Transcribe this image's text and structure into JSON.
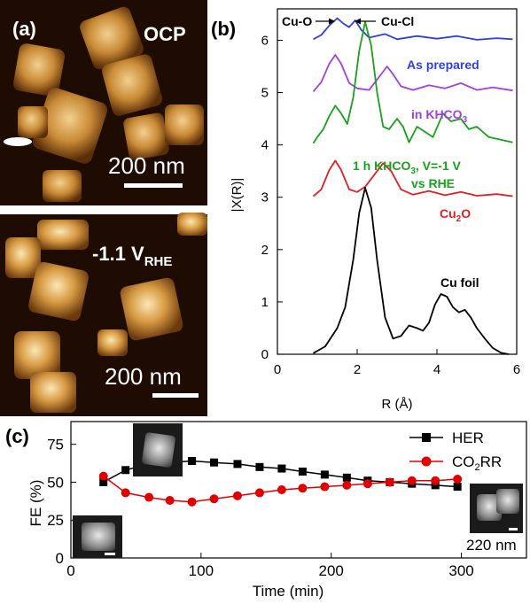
{
  "panel_a": {
    "label": "(a)",
    "top": {
      "condition": "OCP",
      "scale": "200 nm"
    },
    "bottom": {
      "condition_main": "-1.1 V",
      "condition_sub": "RHE",
      "scale": "200 nm"
    },
    "colors": {
      "background": "#1e0b02",
      "particle_dark": "#6a3a0c",
      "particle_mid": "#b8782a",
      "particle_light": "#e8c27a"
    }
  },
  "chart_data": [
    {
      "type": "line",
      "panel": "(b)",
      "xlabel": "R (Å)",
      "ylabel": "|X(R)|",
      "xlim": [
        0,
        6
      ],
      "ylim": [
        0,
        6.6
      ],
      "xticks": [
        0,
        2,
        4,
        6
      ],
      "yticks": [
        0,
        1,
        2,
        3,
        4,
        5,
        6
      ],
      "annotations": [
        {
          "text": "Cu-O",
          "arrow": "right",
          "color": "#000000"
        },
        {
          "text": "Cu-Cl",
          "arrow": "left",
          "color": "#000000"
        }
      ],
      "series": [
        {
          "name": "As prepared",
          "color": "#2f3fe0",
          "offset": 6,
          "points": [
            [
              0.9,
              0.02
            ],
            [
              1.1,
              0.1
            ],
            [
              1.3,
              0.28
            ],
            [
              1.5,
              0.42
            ],
            [
              1.65,
              0.32
            ],
            [
              1.8,
              0.25
            ],
            [
              1.95,
              0.38
            ],
            [
              2.1,
              0.2
            ],
            [
              2.3,
              0.05
            ],
            [
              2.7,
              0.12
            ],
            [
              3.0,
              0.02
            ],
            [
              3.5,
              0.08
            ],
            [
              4.0,
              0.03
            ],
            [
              4.5,
              0.08
            ],
            [
              5.0,
              0.01
            ],
            [
              5.5,
              0.04
            ],
            [
              5.9,
              0.02
            ]
          ]
        },
        {
          "name": "in KHCO3",
          "name_main": "in KHCO",
          "name_sub": "3",
          "color": "#a040e0",
          "offset": 5,
          "points": [
            [
              0.9,
              0.02
            ],
            [
              1.1,
              0.2
            ],
            [
              1.3,
              0.55
            ],
            [
              1.45,
              0.72
            ],
            [
              1.6,
              0.55
            ],
            [
              1.8,
              0.18
            ],
            [
              2.0,
              0.08
            ],
            [
              2.3,
              0.05
            ],
            [
              2.55,
              0.3
            ],
            [
              2.75,
              0.5
            ],
            [
              2.9,
              0.35
            ],
            [
              3.1,
              0.12
            ],
            [
              3.4,
              0.05
            ],
            [
              3.8,
              0.14
            ],
            [
              4.2,
              0.08
            ],
            [
              4.6,
              0.18
            ],
            [
              5.0,
              0.05
            ],
            [
              5.4,
              0.1
            ],
            [
              5.9,
              0.04
            ]
          ]
        },
        {
          "name": "1 h KHCO3, V=-1 V vs RHE",
          "label_line1": "1 h KHCO",
          "label_line1_sub": "3",
          "label_line1_tail": ", V=-1 V",
          "label_line2": "vs RHE",
          "color": "#1aa01a",
          "offset": 4,
          "points": [
            [
              0.9,
              0.03
            ],
            [
              1.0,
              0.15
            ],
            [
              1.15,
              0.3
            ],
            [
              1.3,
              0.55
            ],
            [
              1.45,
              0.75
            ],
            [
              1.6,
              0.6
            ],
            [
              1.75,
              0.4
            ],
            [
              1.9,
              0.9
            ],
            [
              2.05,
              1.8
            ],
            [
              2.2,
              2.35
            ],
            [
              2.35,
              1.9
            ],
            [
              2.5,
              1.0
            ],
            [
              2.65,
              0.35
            ],
            [
              2.8,
              0.3
            ],
            [
              3.0,
              0.5
            ],
            [
              3.15,
              0.35
            ],
            [
              3.3,
              0.05
            ],
            [
              3.5,
              0.35
            ],
            [
              3.7,
              0.25
            ],
            [
              3.9,
              0.15
            ],
            [
              4.15,
              0.6
            ],
            [
              4.35,
              0.45
            ],
            [
              4.6,
              0.5
            ],
            [
              4.8,
              0.3
            ],
            [
              5.0,
              0.35
            ],
            [
              5.3,
              0.15
            ],
            [
              5.6,
              0.1
            ],
            [
              5.9,
              0.05
            ]
          ]
        },
        {
          "name": "Cu2O",
          "name_main": "Cu",
          "name_sub": "2",
          "name_tail": "O",
          "color": "#e02020",
          "offset": 3,
          "points": [
            [
              0.9,
              0.02
            ],
            [
              1.1,
              0.15
            ],
            [
              1.3,
              0.52
            ],
            [
              1.45,
              0.7
            ],
            [
              1.6,
              0.52
            ],
            [
              1.8,
              0.15
            ],
            [
              2.0,
              0.1
            ],
            [
              2.2,
              0.2
            ],
            [
              2.45,
              0.45
            ],
            [
              2.65,
              0.65
            ],
            [
              2.85,
              0.5
            ],
            [
              3.1,
              0.15
            ],
            [
              3.4,
              0.05
            ],
            [
              3.8,
              0.12
            ],
            [
              4.2,
              0.04
            ],
            [
              4.6,
              0.1
            ],
            [
              5.0,
              0.03
            ],
            [
              5.5,
              0.06
            ],
            [
              5.9,
              0.02
            ]
          ]
        },
        {
          "name": "Cu foil",
          "color": "#000000",
          "offset": 0,
          "points": [
            [
              0.9,
              0.02
            ],
            [
              1.2,
              0.15
            ],
            [
              1.5,
              0.5
            ],
            [
              1.7,
              0.9
            ],
            [
              1.9,
              1.8
            ],
            [
              2.05,
              2.7
            ],
            [
              2.2,
              3.18
            ],
            [
              2.35,
              2.8
            ],
            [
              2.5,
              1.8
            ],
            [
              2.7,
              0.7
            ],
            [
              2.9,
              0.3
            ],
            [
              3.1,
              0.35
            ],
            [
              3.3,
              0.55
            ],
            [
              3.5,
              0.5
            ],
            [
              3.65,
              0.45
            ],
            [
              3.8,
              0.6
            ],
            [
              3.95,
              0.95
            ],
            [
              4.1,
              1.15
            ],
            [
              4.25,
              1.1
            ],
            [
              4.4,
              0.9
            ],
            [
              4.55,
              0.8
            ],
            [
              4.7,
              0.85
            ],
            [
              4.85,
              0.7
            ],
            [
              5.0,
              0.5
            ],
            [
              5.2,
              0.3
            ],
            [
              5.4,
              0.12
            ],
            [
              5.6,
              0.03
            ],
            [
              5.8,
              0.0
            ]
          ]
        }
      ]
    },
    {
      "type": "line",
      "panel": "(c)",
      "xlabel": "Time (min)",
      "ylabel": "FE (%)",
      "xlim": [
        0,
        350
      ],
      "ylim": [
        0,
        90
      ],
      "xticks": [
        0,
        100,
        200,
        300
      ],
      "yticks": [
        0,
        25,
        50,
        75
      ],
      "series": [
        {
          "name": "HER",
          "color": "#000000",
          "marker": "square",
          "x": [
            25,
            42,
            60,
            76,
            93,
            110,
            128,
            145,
            162,
            178,
            195,
            212,
            228,
            245,
            262,
            280,
            297
          ],
          "y": [
            50,
            58,
            62,
            63,
            64,
            63,
            62,
            60,
            59,
            57,
            55,
            53,
            51,
            50,
            49,
            48,
            47
          ]
        },
        {
          "name": "CO2RR",
          "name_main": "CO",
          "name_sub": "2",
          "name_tail": "RR",
          "color": "#e00000",
          "marker": "circle",
          "x": [
            25,
            42,
            60,
            76,
            93,
            110,
            128,
            145,
            162,
            178,
            195,
            212,
            228,
            245,
            262,
            280,
            297
          ],
          "y": [
            54,
            43,
            40,
            38,
            37,
            39,
            41,
            43,
            45,
            46,
            47,
            48,
            49,
            50,
            51,
            51,
            52
          ]
        }
      ],
      "inset_scale": "220 nm"
    }
  ]
}
